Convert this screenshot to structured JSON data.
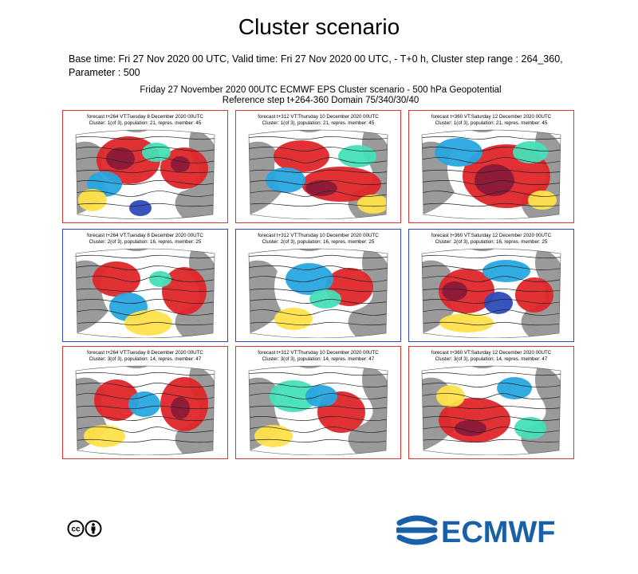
{
  "page": {
    "title": "Cluster scenario",
    "description": "Base time: Fri 27 Nov 2020 00 UTC, Valid time: Fri 27 Nov 2020 00 UTC, - T+0 h, Cluster step range : 264_360, Parameter : 500"
  },
  "figure": {
    "title_line1": "Friday 27 November 2020 00UTC ECMWF EPS Cluster scenario - 500 hPa Geopotential",
    "title_line2": "Reference step t+264-360 Domain 75/340/30/40"
  },
  "panels": [
    {
      "line1": "forecast t+264 VT:Tuesday 8 December 2020 00UTC",
      "line2": "Cluster: 1(of 3), population: 21, repres. member: 45",
      "cluster": 1
    },
    {
      "line1": "forecast t+312 VT:Thursday 10 December 2020 00UTC",
      "line2": "Cluster: 1(of 3), population: 21, repres. member: 45",
      "cluster": 1
    },
    {
      "line1": "forecast t+360 VT:Saturday 12 December 2020 00UTC",
      "line2": "Cluster: 1(of 3), population: 21, repres. member: 45",
      "cluster": 1
    },
    {
      "line1": "forecast t+264 VT:Tuesday 8 December 2020 00UTC",
      "line2": "Cluster: 2(of 3), population: 16, repres. member: 25",
      "cluster": 2
    },
    {
      "line1": "forecast t+312 VT:Thursday 10 December 2020 00UTC",
      "line2": "Cluster: 2(of 3), population: 16, repres. member: 25",
      "cluster": 2
    },
    {
      "line1": "forecast t+360 VT:Saturday 12 December 2020 00UTC",
      "line2": "Cluster: 2(of 3), population: 16, repres. member: 25",
      "cluster": 2
    },
    {
      "line1": "forecast t+264 VT:Tuesday 8 December 2020 00UTC",
      "line2": "Cluster: 3(of 3), population: 14, repres. member: 47",
      "cluster": 3
    },
    {
      "line1": "forecast t+312 VT:Thursday 10 December 2020 00UTC",
      "line2": "Cluster: 3(of 3), population: 14, repres. member: 47",
      "cluster": 3
    },
    {
      "line1": "forecast t+360 VT:Saturday 12 December 2020 00UTC",
      "line2": "Cluster: 3(of 3), population: 14, repres. member: 47",
      "cluster": 3
    }
  ],
  "colors": {
    "cluster_frame_red": "#dd3333",
    "cluster_frame_blue": "#3344cc",
    "anomaly_positive_strong": "#8b1a3a",
    "anomaly_positive": "#e0262a",
    "anomaly_positive_weak": "#f2a21a",
    "anomaly_positive_faint": "#ffe24a",
    "anomaly_negative_faint": "#44e0b8",
    "anomaly_negative": "#27a7e0",
    "anomaly_negative_strong": "#2b4bb8",
    "land": "#9a9a9a",
    "logo_blue": "#1a60a8"
  },
  "footer": {
    "license_icon": "creative-commons-by-icon",
    "logo_text": "ECMWF",
    "logo_icon": "ecmwf-swirl-icon"
  }
}
